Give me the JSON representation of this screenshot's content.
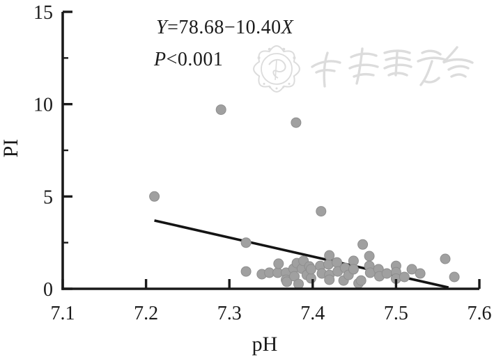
{
  "figure": {
    "annotation_equation": {
      "lead_var": "Y",
      "body": "=78.68−10.40",
      "trail_var": "X"
    },
    "annotation_pvalue": {
      "lead_var": "P",
      "body": "<0.001"
    }
  },
  "chart_data": {
    "type": "scatter",
    "title": "",
    "xlabel": "pH",
    "ylabel": "PI",
    "xlim": [
      7.1,
      7.6
    ],
    "ylim": [
      0,
      15
    ],
    "grid": false,
    "legend": null,
    "x_ticks": [
      7.1,
      7.2,
      7.3,
      7.4,
      7.5,
      7.6
    ],
    "x_tick_labels": [
      "7.1",
      "7.2",
      "7.3",
      "7.4",
      "7.5",
      "7.6"
    ],
    "y_ticks_major": [
      0,
      5,
      10,
      15
    ],
    "y_tick_labels": [
      "0",
      "5",
      "10",
      "15"
    ],
    "y_ticks_minor": [
      2.5,
      7.5,
      12.5
    ],
    "annotations": {
      "equation": "Y=78.68−10.40X",
      "p_value": "P<0.001"
    },
    "regression": {
      "x_start": 7.21,
      "y_start": 3.7,
      "x_end": 7.563,
      "y_end": 0.07
    },
    "point_color": "#a0a0a0",
    "point_stroke": "#8e8e8e",
    "line_color": "#141414",
    "axis_color": "#1a1a1a",
    "watermark_color": "#dcdcdc",
    "points": [
      [
        7.21,
        5.0
      ],
      [
        7.29,
        9.7
      ],
      [
        7.38,
        9.0
      ],
      [
        7.41,
        4.2
      ],
      [
        7.32,
        2.5
      ],
      [
        7.46,
        2.4
      ],
      [
        7.32,
        0.94
      ],
      [
        7.339,
        0.79
      ],
      [
        7.348,
        0.87
      ],
      [
        7.358,
        0.87
      ],
      [
        7.359,
        1.36
      ],
      [
        7.368,
        0.87
      ],
      [
        7.368,
        0.49
      ],
      [
        7.369,
        0.38
      ],
      [
        7.377,
        1.09
      ],
      [
        7.378,
        0.68
      ],
      [
        7.381,
        1.39
      ],
      [
        7.383,
        0.26
      ],
      [
        7.387,
        1.09
      ],
      [
        7.389,
        1.51
      ],
      [
        7.393,
        0.75
      ],
      [
        7.396,
        1.21
      ],
      [
        7.398,
        0.57
      ],
      [
        7.398,
        1.06
      ],
      [
        7.409,
        1.24
      ],
      [
        7.411,
        0.83
      ],
      [
        7.419,
        1.32
      ],
      [
        7.42,
        1.81
      ],
      [
        7.42,
        0.75
      ],
      [
        7.42,
        0.49
      ],
      [
        7.429,
        1.43
      ],
      [
        7.43,
        0.94
      ],
      [
        7.437,
        0.45
      ],
      [
        7.439,
        1.13
      ],
      [
        7.443,
        0.75
      ],
      [
        7.449,
        1.51
      ],
      [
        7.449,
        1.06
      ],
      [
        7.455,
        0.3
      ],
      [
        7.458,
        0.45
      ],
      [
        7.468,
        1.77
      ],
      [
        7.468,
        1.24
      ],
      [
        7.469,
        0.87
      ],
      [
        7.479,
        1.06
      ],
      [
        7.48,
        0.68
      ],
      [
        7.489,
        0.83
      ],
      [
        7.5,
        1.24
      ],
      [
        7.5,
        0.9
      ],
      [
        7.5,
        0.55
      ],
      [
        7.51,
        0.64
      ],
      [
        7.519,
        1.06
      ],
      [
        7.529,
        0.83
      ],
      [
        7.559,
        1.62
      ],
      [
        7.57,
        0.64
      ]
    ]
  }
}
